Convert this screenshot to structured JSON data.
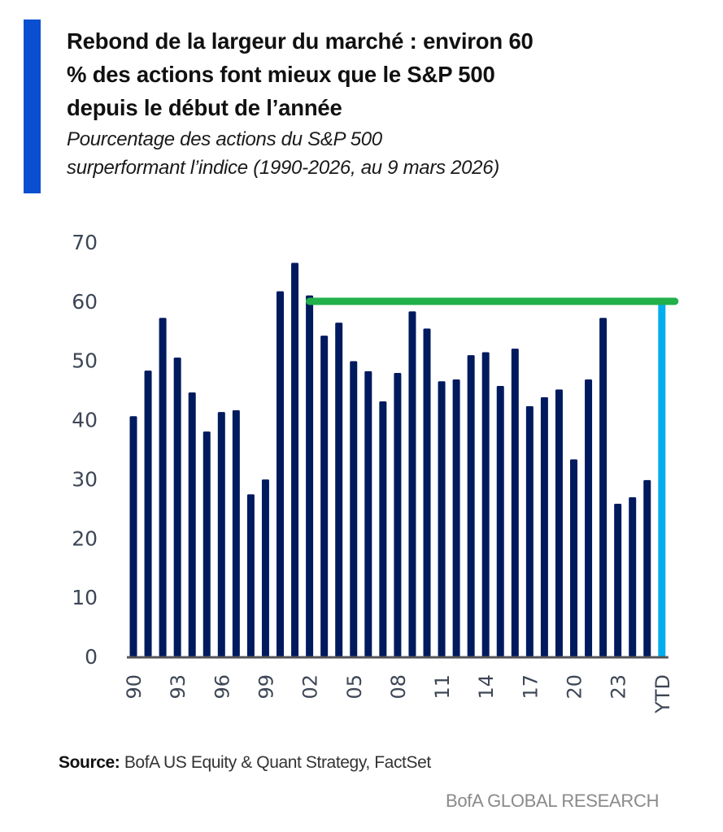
{
  "header": {
    "title_lines": [
      "Rebond de la largeur du marché : environ 60",
      "% des actions font mieux que le S&P 500",
      "depuis le début de l’année"
    ],
    "subtitle_lines": [
      "Pourcentage des actions du S&P 500",
      "surperformant l’indice (1990-2026, au 9 mars 2026)"
    ]
  },
  "colors": {
    "accent": "#0a4fd1",
    "bar": "#001a5e",
    "ytd_bar": "#00aeef",
    "reference_line": "#22b04b",
    "axis": "#555555",
    "tick_text": "#3d4656"
  },
  "chart_data": {
    "type": "bar",
    "title": "Rebond de la largeur du marché : environ 60 % des actions font mieux que le S&P 500 depuis le début de l’année",
    "subtitle": "Pourcentage des actions du S&P 500 surperformant l’indice (1990-2026, au 9 mars 2026)",
    "xlabel": "",
    "ylabel": "",
    "ylim": [
      0,
      70
    ],
    "yticks": [
      0,
      10,
      20,
      30,
      40,
      50,
      60,
      70
    ],
    "grid": false,
    "legend": "none",
    "categories": [
      "1990",
      "1991",
      "1992",
      "1993",
      "1994",
      "1995",
      "1996",
      "1997",
      "1998",
      "1999",
      "2000",
      "2001",
      "2002",
      "2003",
      "2004",
      "2005",
      "2006",
      "2007",
      "2008",
      "2009",
      "2010",
      "2011",
      "2012",
      "2013",
      "2014",
      "2015",
      "2016",
      "2017",
      "2018",
      "2019",
      "2020",
      "2021",
      "2022",
      "2023",
      "2024",
      "2025",
      "YTD"
    ],
    "xtick_labels": [
      "90",
      "93",
      "96",
      "99",
      "02",
      "05",
      "08",
      "11",
      "14",
      "17",
      "20",
      "23",
      "YTD"
    ],
    "xtick_indices": [
      0,
      3,
      6,
      9,
      12,
      15,
      18,
      21,
      24,
      27,
      30,
      33,
      36
    ],
    "values": [
      40.6,
      48.3,
      57.2,
      50.5,
      44.6,
      38.0,
      41.3,
      41.6,
      27.4,
      29.9,
      61.7,
      66.5,
      61.0,
      54.2,
      56.4,
      49.9,
      48.2,
      43.1,
      47.9,
      58.3,
      55.4,
      46.5,
      46.8,
      50.9,
      51.4,
      45.7,
      52.0,
      42.3,
      43.8,
      45.1,
      33.3,
      46.8,
      57.2,
      25.8,
      26.9,
      29.8,
      60.0
    ],
    "highlight_index": 36,
    "reference_line": {
      "value": 60,
      "from_category": "2002",
      "to_category": "YTD"
    }
  },
  "footer": {
    "source_label": "Source:",
    "source_text": " BofA US Equity & Quant Strategy, FactSet",
    "brand": "BofA GLOBAL RESEARCH"
  }
}
